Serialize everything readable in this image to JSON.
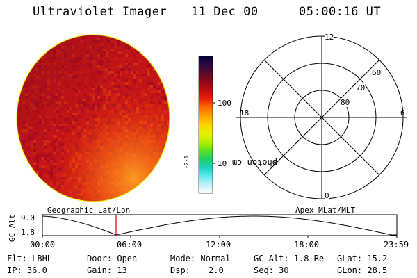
{
  "header": {
    "instrument": "Ultraviolet Imager",
    "date": "11 Dec 00",
    "time": "05:00:16 UT"
  },
  "colorbar": {
    "unit_main": "photon cm",
    "unit_exp1": "-2",
    "unit_s": "s",
    "unit_exp2": "-1",
    "tick_100": "100",
    "tick_10": "10",
    "stops": [
      "#000033",
      "#2a0a40",
      "#5a0a2a",
      "#8a0a18",
      "#c00a10",
      "#e8200a",
      "#ff6a00",
      "#ffa000",
      "#ffd000",
      "#e8f000",
      "#b8f000",
      "#60e020",
      "#20d060",
      "#20d0c0",
      "#60e8f0",
      "#c0f0f8",
      "#ffffff"
    ]
  },
  "polar_plot": {
    "label_top": "12",
    "label_left": "18",
    "label_right": "6",
    "label_bottom": "0",
    "ring_60": "60",
    "ring_70": "70",
    "ring_80": "80"
  },
  "timeline": {
    "left_title": "Geographic Lat/Lon",
    "right_title": "Apex MLat/MLT",
    "axis_label": "GC Alt",
    "y_top": "9.0",
    "y_bottom": "1.8",
    "x_ticks": [
      "00:00",
      "06:00",
      "12:00",
      "18:00",
      "23:59"
    ]
  },
  "info": {
    "flt": "Flt: LBHL",
    "ip": "IP: 36.0",
    "door": "Door: Open",
    "gain": "Gain: 13",
    "mode": "Mode: Normal",
    "dsp_label": "Dsp:",
    "dsp_value": "2.0",
    "gc_alt": "GC Alt: 1.8 Re",
    "seq": "Seq: 30",
    "glat": "GLat:  15.2",
    "glon": "GLon:  28.5"
  },
  "colors": {
    "disk_base": "#d01818",
    "disk_edge": "#e8f000",
    "marker": "#d00000"
  }
}
